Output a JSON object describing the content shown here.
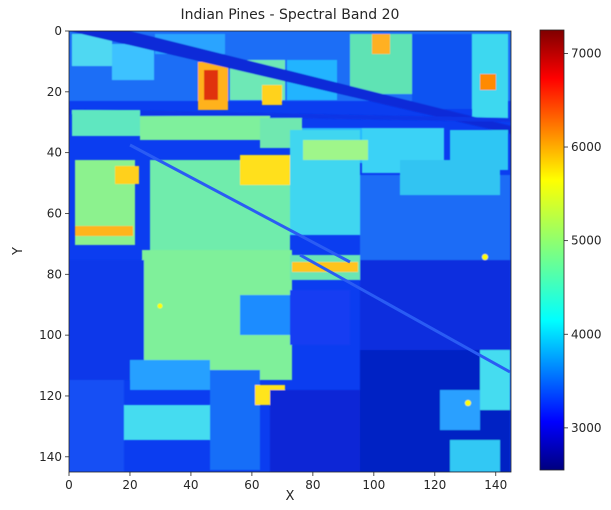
{
  "figure": {
    "title": "Indian Pines - Spectral Band 20"
  },
  "image": {
    "x_label": "X",
    "y_label": "Y",
    "x_ticks": [
      "0",
      "20",
      "40",
      "60",
      "80",
      "100",
      "120",
      "140"
    ],
    "y_ticks": [
      "0",
      "20",
      "40",
      "60",
      "80",
      "100",
      "120",
      "140"
    ],
    "x_range": [
      0,
      145
    ],
    "y_range": [
      0,
      145
    ],
    "y_axis_direction": "top-down",
    "colormap": "jet"
  },
  "colorbar": {
    "ticks": [
      "3000",
      "4000",
      "5000",
      "6000",
      "7000"
    ],
    "range": [
      2550,
      7250
    ]
  },
  "colors": {
    "jet_stops": [
      "#00007f",
      "#0000ff",
      "#007fff",
      "#00ffff",
      "#7fff7f",
      "#ffff00",
      "#ff7f00",
      "#ff0000",
      "#7f0000"
    ]
  }
}
